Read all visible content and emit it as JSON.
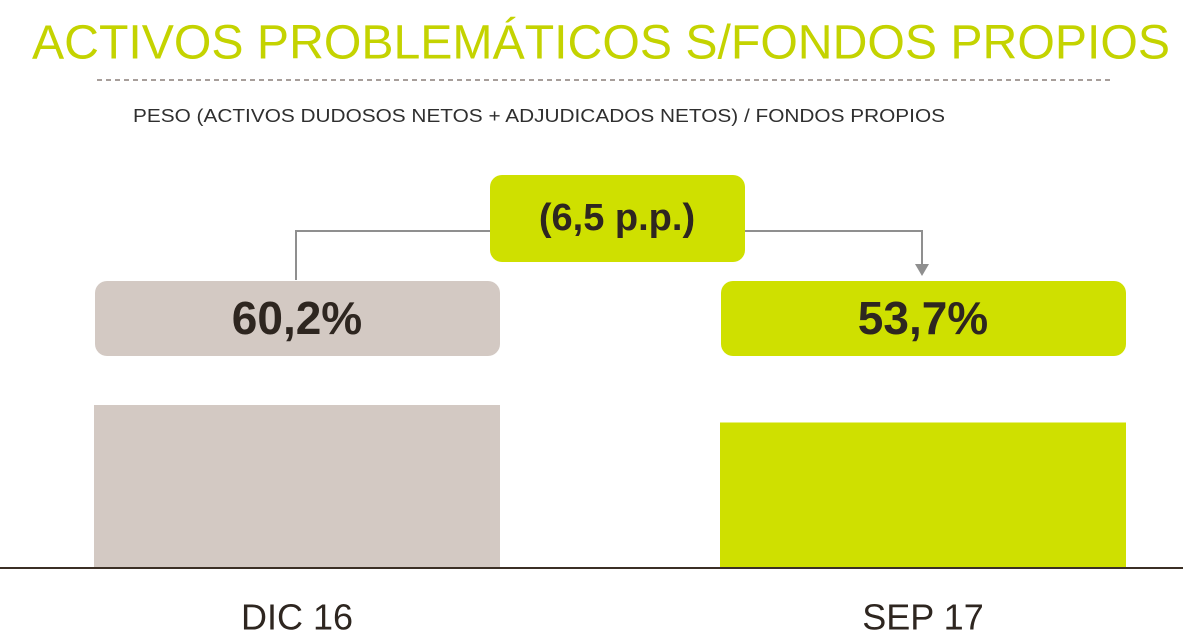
{
  "chart_data": {
    "type": "bar",
    "title": "ACTIVOS PROBLEMÁTICOS S/FONDOS PROPIOS",
    "subtitle": "PESO (ACTIVOS DUDOSOS NETOS + ADJUDICADOS NETOS) / FONDOS PROPIOS",
    "categories": [
      "DIC 16",
      "SEP 17"
    ],
    "values": [
      60.2,
      53.7
    ],
    "value_labels": [
      "60,2%",
      "53,7%"
    ],
    "colors": [
      "#d3c9c3",
      "#cfe000"
    ],
    "annotation": "(6,5 p.p.)"
  }
}
